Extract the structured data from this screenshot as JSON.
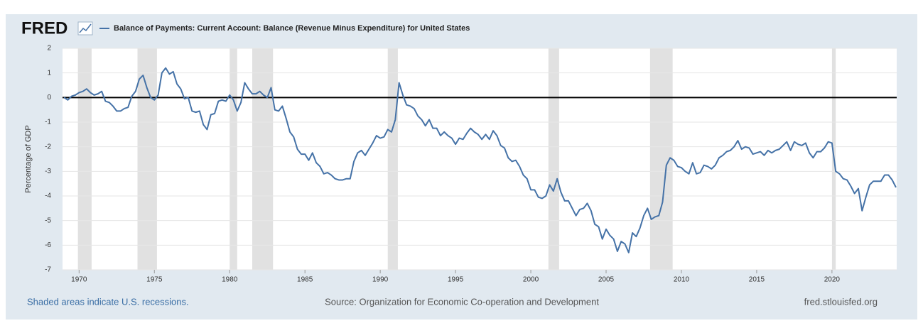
{
  "chart_data": {
    "type": "line",
    "logo": "FRED",
    "ylabel": "Percentage of GDP",
    "note": "Shaded areas indicate U.S. recessions.",
    "source": "Source: Organization for Economic Co-operation and Development",
    "site": "fred.stlouisfed.org",
    "xlim": [
      1968.9,
      2024.3
    ],
    "xticks": [
      1970,
      1975,
      1980,
      1985,
      1990,
      1995,
      2000,
      2005,
      2010,
      2015,
      2020
    ],
    "ylim": [
      -7,
      2
    ],
    "yticks": [
      -7,
      -6,
      -5,
      -4,
      -3,
      -2,
      -1,
      0,
      1,
      2
    ],
    "grid": true,
    "recession_color": "#e1e1e1",
    "recessions": [
      [
        1969.92,
        1970.83
      ],
      [
        1973.88,
        1975.17
      ],
      [
        1980.0,
        1980.5
      ],
      [
        1981.5,
        1982.88
      ],
      [
        1990.5,
        1991.17
      ],
      [
        2001.17,
        2001.88
      ],
      [
        2007.92,
        2009.42
      ],
      [
        2020.0,
        2020.25
      ]
    ],
    "x": [
      1969,
      1969.25,
      1969.5,
      1969.75,
      1970,
      1970.25,
      1970.5,
      1970.75,
      1971,
      1971.25,
      1971.5,
      1971.75,
      1972,
      1972.25,
      1972.5,
      1972.75,
      1973,
      1973.25,
      1973.5,
      1973.75,
      1974,
      1974.25,
      1974.5,
      1974.75,
      1975,
      1975.25,
      1975.5,
      1975.75,
      1976,
      1976.25,
      1976.5,
      1976.75,
      1977,
      1977.25,
      1977.5,
      1977.75,
      1978,
      1978.25,
      1978.5,
      1978.75,
      1979,
      1979.25,
      1979.5,
      1979.75,
      1980,
      1980.25,
      1980.5,
      1980.75,
      1981,
      1981.25,
      1981.5,
      1981.75,
      1982,
      1982.25,
      1982.5,
      1982.75,
      1983,
      1983.25,
      1983.5,
      1983.75,
      1984,
      1984.25,
      1984.5,
      1984.75,
      1985,
      1985.25,
      1985.5,
      1985.75,
      1986,
      1986.25,
      1986.5,
      1986.75,
      1987,
      1987.25,
      1987.5,
      1987.75,
      1988,
      1988.25,
      1988.5,
      1988.75,
      1989,
      1989.25,
      1989.5,
      1989.75,
      1990,
      1990.25,
      1990.5,
      1990.75,
      1991,
      1991.25,
      1991.5,
      1991.75,
      1992,
      1992.25,
      1992.5,
      1992.75,
      1993,
      1993.25,
      1993.5,
      1993.75,
      1994,
      1994.25,
      1994.5,
      1994.75,
      1995,
      1995.25,
      1995.5,
      1995.75,
      1996,
      1996.25,
      1996.5,
      1996.75,
      1997,
      1997.25,
      1997.5,
      1997.75,
      1998,
      1998.25,
      1998.5,
      1998.75,
      1999,
      1999.25,
      1999.5,
      1999.75,
      2000,
      2000.25,
      2000.5,
      2000.75,
      2001,
      2001.25,
      2001.5,
      2001.75,
      2002,
      2002.25,
      2002.5,
      2002.75,
      2003,
      2003.25,
      2003.5,
      2003.75,
      2004,
      2004.25,
      2004.5,
      2004.75,
      2005,
      2005.25,
      2005.5,
      2005.75,
      2006,
      2006.25,
      2006.5,
      2006.75,
      2007,
      2007.25,
      2007.5,
      2007.75,
      2008,
      2008.25,
      2008.5,
      2008.75,
      2009,
      2009.25,
      2009.5,
      2009.75,
      2010,
      2010.25,
      2010.5,
      2010.75,
      2011,
      2011.25,
      2011.5,
      2011.75,
      2012,
      2012.25,
      2012.5,
      2012.75,
      2013,
      2013.25,
      2013.5,
      2013.75,
      2014,
      2014.25,
      2014.5,
      2014.75,
      2015,
      2015.25,
      2015.5,
      2015.75,
      2016,
      2016.25,
      2016.5,
      2016.75,
      2017,
      2017.25,
      2017.5,
      2017.75,
      2018,
      2018.25,
      2018.5,
      2018.75,
      2019,
      2019.25,
      2019.5,
      2019.75,
      2020,
      2020.25,
      2020.5,
      2020.75,
      2021,
      2021.25,
      2021.5,
      2021.75,
      2022,
      2022.25,
      2022.5,
      2022.75,
      2023,
      2023.25,
      2023.5,
      2023.75,
      2024,
      2024.25
    ],
    "series": [
      {
        "name": "Balance of Payments: Current Account: Balance (Revenue Minus Expenditure) for United States",
        "color": "#4572a7",
        "values": [
          0.0,
          -0.1,
          0.05,
          0.1,
          0.2,
          0.25,
          0.35,
          0.2,
          0.1,
          0.15,
          0.25,
          -0.15,
          -0.2,
          -0.35,
          -0.55,
          -0.55,
          -0.45,
          -0.4,
          0.05,
          0.25,
          0.75,
          0.9,
          0.4,
          0.0,
          -0.1,
          0.1,
          1.0,
          1.2,
          0.95,
          1.05,
          0.55,
          0.35,
          -0.05,
          0.0,
          -0.55,
          -0.6,
          -0.55,
          -1.1,
          -1.3,
          -0.7,
          -0.65,
          -0.15,
          -0.1,
          -0.15,
          0.1,
          -0.1,
          -0.55,
          -0.2,
          0.6,
          0.35,
          0.15,
          0.15,
          0.25,
          0.1,
          0.0,
          0.4,
          -0.5,
          -0.55,
          -0.35,
          -0.85,
          -1.4,
          -1.6,
          -2.1,
          -2.3,
          -2.3,
          -2.55,
          -2.25,
          -2.65,
          -2.8,
          -3.1,
          -3.05,
          -3.15,
          -3.3,
          -3.35,
          -3.35,
          -3.3,
          -3.3,
          -2.6,
          -2.25,
          -2.15,
          -2.35,
          -2.1,
          -1.85,
          -1.55,
          -1.65,
          -1.6,
          -1.3,
          -1.4,
          -0.9,
          0.6,
          0.1,
          -0.3,
          -0.35,
          -0.45,
          -0.75,
          -0.9,
          -1.15,
          -0.9,
          -1.25,
          -1.25,
          -1.55,
          -1.4,
          -1.55,
          -1.65,
          -1.9,
          -1.65,
          -1.7,
          -1.45,
          -1.25,
          -1.4,
          -1.5,
          -1.7,
          -1.5,
          -1.7,
          -1.35,
          -1.55,
          -1.95,
          -2.05,
          -2.45,
          -2.6,
          -2.55,
          -2.8,
          -3.15,
          -3.3,
          -3.75,
          -3.75,
          -4.05,
          -4.1,
          -4.0,
          -3.55,
          -3.8,
          -3.3,
          -3.85,
          -4.2,
          -4.2,
          -4.5,
          -4.8,
          -4.55,
          -4.5,
          -4.3,
          -4.6,
          -5.15,
          -5.25,
          -5.75,
          -5.35,
          -5.6,
          -5.75,
          -6.25,
          -5.85,
          -5.95,
          -6.3,
          -5.5,
          -5.65,
          -5.3,
          -4.8,
          -4.5,
          -4.95,
          -4.85,
          -4.8,
          -4.25,
          -2.75,
          -2.45,
          -2.55,
          -2.8,
          -2.85,
          -3.0,
          -3.1,
          -2.65,
          -3.1,
          -3.05,
          -2.75,
          -2.8,
          -2.9,
          -2.75,
          -2.45,
          -2.35,
          -2.2,
          -2.15,
          -2.0,
          -1.75,
          -2.1,
          -2.0,
          -2.05,
          -2.3,
          -2.25,
          -2.2,
          -2.35,
          -2.15,
          -2.25,
          -2.15,
          -2.1,
          -1.95,
          -1.8,
          -2.15,
          -1.8,
          -1.9,
          -1.95,
          -1.85,
          -2.25,
          -2.45,
          -2.2,
          -2.2,
          -2.05,
          -1.8,
          -1.85,
          -3.0,
          -3.1,
          -3.3,
          -3.35,
          -3.6,
          -3.9,
          -3.7,
          -4.6,
          -4.05,
          -3.55,
          -3.4,
          -3.4,
          -3.4,
          -3.15,
          -3.15,
          -3.35,
          -3.65
        ]
      }
    ]
  }
}
